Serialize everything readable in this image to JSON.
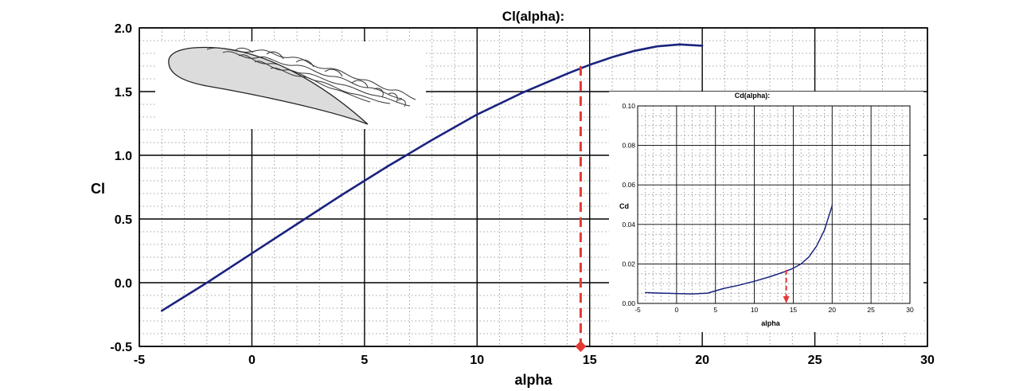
{
  "chart_data": [
    {
      "type": "line",
      "title": "Cl(alpha):",
      "xlabel": "alpha",
      "ylabel": "Cl",
      "xlim": [
        -5,
        30
      ],
      "ylim": [
        -0.5,
        2.0
      ],
      "xticks": [
        -5,
        0,
        5,
        10,
        15,
        20,
        25,
        30
      ],
      "xtick_labels": [
        "-5",
        "0",
        "5",
        "10",
        "15",
        "20",
        "25",
        "30"
      ],
      "yticks": [
        -0.5,
        0.0,
        0.5,
        1.0,
        1.5,
        2.0
      ],
      "ytick_labels": [
        "-0.5",
        "0.0",
        "0.5",
        "1.0",
        "1.5",
        "2.0"
      ],
      "grid": true,
      "series": [
        {
          "color": "#1a237e",
          "x": [
            -4,
            -2,
            0,
            2,
            4,
            6,
            8,
            10,
            12,
            14,
            15,
            16,
            17,
            18,
            19,
            20
          ],
          "y": [
            -0.22,
            0.0,
            0.23,
            0.46,
            0.69,
            0.91,
            1.12,
            1.32,
            1.49,
            1.64,
            1.71,
            1.77,
            1.82,
            1.855,
            1.87,
            1.86
          ]
        }
      ],
      "annotation": {
        "type": "dashed-vertical",
        "color": "#e53935",
        "x": 14.6,
        "y_from": -0.5,
        "y_to": 1.7,
        "marker": "diamond"
      }
    },
    {
      "type": "line",
      "title": "Cd(alpha):",
      "xlabel": "alpha",
      "ylabel": "Cd",
      "xlim": [
        -5,
        30
      ],
      "ylim": [
        0,
        0.1
      ],
      "xticks": [
        -5,
        0,
        5,
        10,
        15,
        20,
        25,
        30
      ],
      "xtick_labels": [
        "-5",
        "0",
        "5",
        "10",
        "15",
        "20",
        "25",
        "30"
      ],
      "yticks": [
        0,
        0.02,
        0.04,
        0.06,
        0.08,
        0.1
      ],
      "ytick_labels": [
        "0.00",
        "0.02",
        "0.04",
        "0.06",
        "0.08",
        "0.10"
      ],
      "grid": true,
      "series": [
        {
          "color": "#1a237e",
          "x": [
            -4,
            -2,
            0,
            2,
            4,
            6,
            8,
            10,
            12,
            14,
            15,
            16,
            17,
            18,
            19,
            20
          ],
          "y": [
            0.0055,
            0.0052,
            0.005,
            0.0048,
            0.0052,
            0.0075,
            0.0092,
            0.0112,
            0.0135,
            0.0162,
            0.0178,
            0.02,
            0.0235,
            0.029,
            0.037,
            0.0495
          ]
        }
      ],
      "annotation": {
        "type": "dashed-vertical",
        "color": "#e53935",
        "x": 14.1,
        "y_from": 0.0,
        "y_to": 0.017,
        "marker": "arrow"
      }
    }
  ]
}
